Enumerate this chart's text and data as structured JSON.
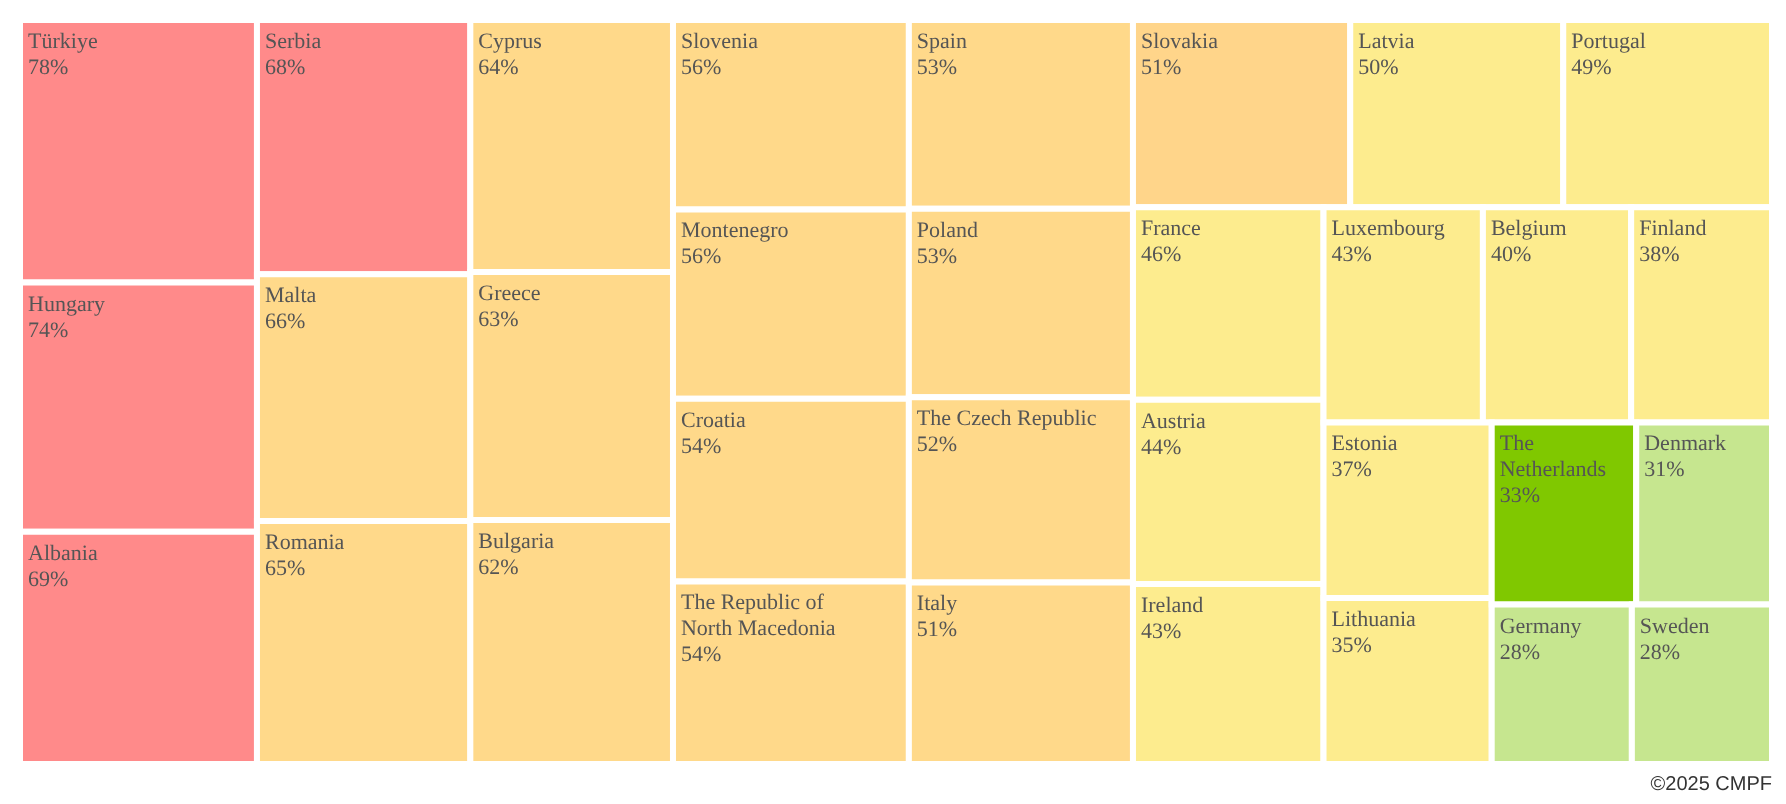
{
  "chart_data": {
    "type": "other",
    "categories": [
      "Türkiye",
      "Hungary",
      "Albania",
      "Serbia",
      "Malta",
      "Romania",
      "Cyprus",
      "Greece",
      "Bulgaria",
      "Slovenia",
      "Montenegro",
      "Croatia",
      "The Republic of North Macedonia",
      "Spain",
      "Poland",
      "The Czech Republic",
      "Italy",
      "Slovakia",
      "Latvia",
      "Portugal",
      "France",
      "Austria",
      "Ireland",
      "Luxembourg",
      "Belgium",
      "Finland",
      "Estonia",
      "Lithuania",
      "The Netherlands",
      "Denmark",
      "Germany",
      "Sweden"
    ],
    "values": [
      78,
      74,
      69,
      68,
      66,
      65,
      64,
      63,
      62,
      56,
      56,
      54,
      54,
      53,
      53,
      52,
      51,
      51,
      50,
      49,
      46,
      44,
      43,
      43,
      40,
      38,
      37,
      35,
      33,
      31,
      28,
      28
    ],
    "value_labels": [
      "78%",
      "74%",
      "69%",
      "68%",
      "66%",
      "65%",
      "64%",
      "63%",
      "62%",
      "56%",
      "56%",
      "54%",
      "54%",
      "53%",
      "53%",
      "52%",
      "51%",
      "51%",
      "50%",
      "49%",
      "46%",
      "44%",
      "43%",
      "43%",
      "40%",
      "38%",
      "37%",
      "35%",
      "33%",
      "31%",
      "28%",
      "28%"
    ],
    "colors": [
      "#ff8a8a",
      "#ff8a8a",
      "#ff8a8a",
      "#ff8a8a",
      "#ffd98a",
      "#ffd98a",
      "#ffd98a",
      "#ffd98a",
      "#ffd98a",
      "#ffd98a",
      "#ffd98a",
      "#ffd98a",
      "#ffd98a",
      "#ffd98a",
      "#ffd98a",
      "#ffd98a",
      "#ffd98a",
      "#ffd58a",
      "#fdec8e",
      "#fdec8e",
      "#fdec8e",
      "#fdec8e",
      "#fdec8e",
      "#fdec8e",
      "#fdec8e",
      "#fdec8e",
      "#fdec8e",
      "#fdec8e",
      "#80c800",
      "#c6e68f",
      "#c6e68f",
      "#c6e68f"
    ],
    "annotations": [
      "©2025 CMPF"
    ]
  }
}
